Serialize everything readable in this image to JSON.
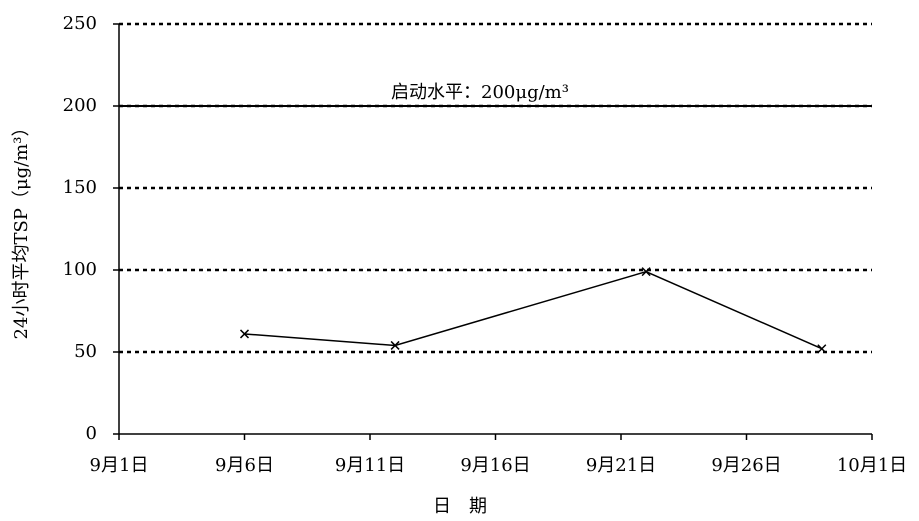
{
  "chart_data": {
    "type": "line",
    "x": [
      6,
      12,
      22,
      29
    ],
    "series": [
      {
        "color": "#000000",
        "values": [
          61,
          54,
          99,
          52
        ]
      }
    ],
    "xlim": [
      1,
      31
    ],
    "xticks": [
      {
        "value": 1,
        "label": "9月1日"
      },
      {
        "value": 6,
        "label": "9月6日"
      },
      {
        "value": 11,
        "label": "9月11日"
      },
      {
        "value": 16,
        "label": "9月16日"
      },
      {
        "value": 21,
        "label": "9月21日"
      },
      {
        "value": 26,
        "label": "9月26日"
      },
      {
        "value": 31,
        "label": "10月1日"
      }
    ],
    "ylim": [
      0,
      250
    ],
    "yticks": [
      0,
      50,
      100,
      150,
      200,
      250
    ],
    "grid": true,
    "xlabel": "日　期",
    "ylabel": "24小时平均TSP（μg/m³）",
    "threshold": {
      "value": 200,
      "label": "启动水平：200μg/m³"
    }
  }
}
